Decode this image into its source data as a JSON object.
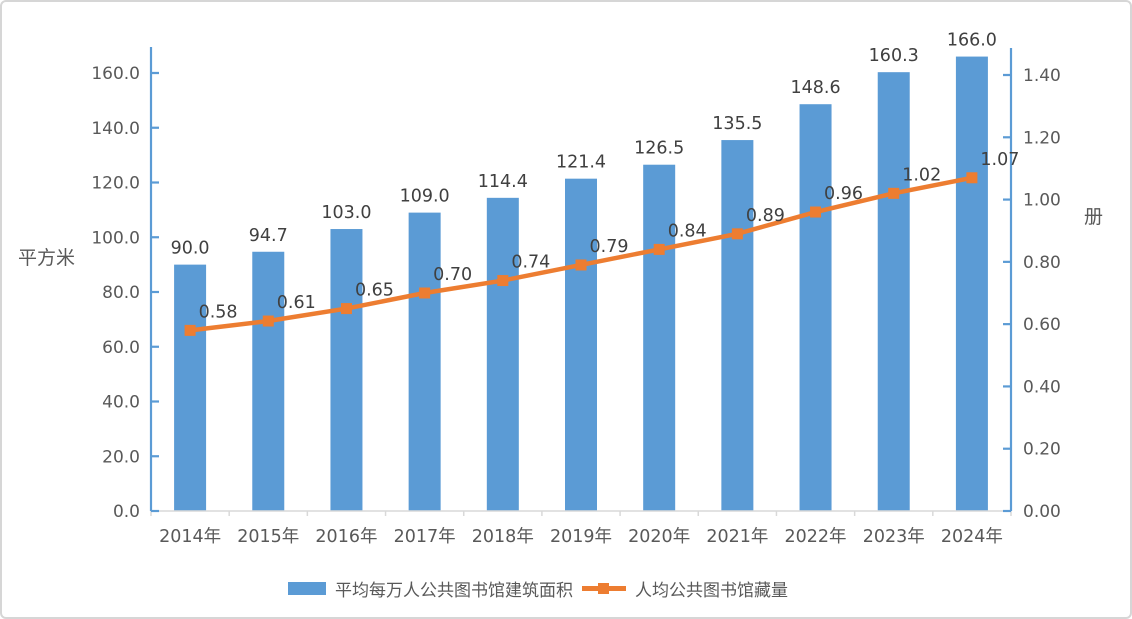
{
  "chart_data": {
    "type": "bar",
    "subtype": "bar-line-combo",
    "categories": [
      "2014年",
      "2015年",
      "2016年",
      "2017年",
      "2018年",
      "2019年",
      "2020年",
      "2021年",
      "2022年",
      "2023年",
      "2024年"
    ],
    "series": [
      {
        "name": "平均每万人公共图书馆建筑面积",
        "type": "bar",
        "axis": "left",
        "color": "#5B9BD5",
        "decimals": 1,
        "values": [
          90.0,
          94.7,
          103.0,
          109.0,
          114.4,
          121.4,
          126.5,
          135.5,
          148.6,
          160.3,
          166.0
        ]
      },
      {
        "name": "人均公共图书馆藏量",
        "type": "line",
        "axis": "right",
        "color": "#ED7D31",
        "decimals": 2,
        "values": [
          0.58,
          0.61,
          0.65,
          0.7,
          0.74,
          0.79,
          0.84,
          0.89,
          0.96,
          1.02,
          1.07
        ]
      }
    ],
    "left_axis": {
      "title": "平方米",
      "min": 0,
      "max": 160,
      "ticks": [
        "0.0",
        "20.0",
        "40.0",
        "60.0",
        "80.0",
        "100.0",
        "120.0",
        "140.0",
        "160.0"
      ],
      "color": "#5B9BD5"
    },
    "right_axis": {
      "title": "册",
      "min": 0,
      "max": 1.4,
      "ticks": [
        "0.00",
        "0.20",
        "0.40",
        "0.60",
        "0.80",
        "1.00",
        "1.20",
        "1.40"
      ],
      "color": "#5B9BD5"
    },
    "grid": false,
    "legend_position": "bottom",
    "legend": [
      {
        "label": "平均每万人公共图书馆建筑面积",
        "swatch": "bar",
        "color": "#5B9BD5"
      },
      {
        "label": "人均公共图书馆藏量",
        "swatch": "line",
        "color": "#ED7D31"
      }
    ],
    "label_color": "#404040",
    "tick_label_color": "#595959",
    "baseline_color": "#D9D9D9"
  }
}
